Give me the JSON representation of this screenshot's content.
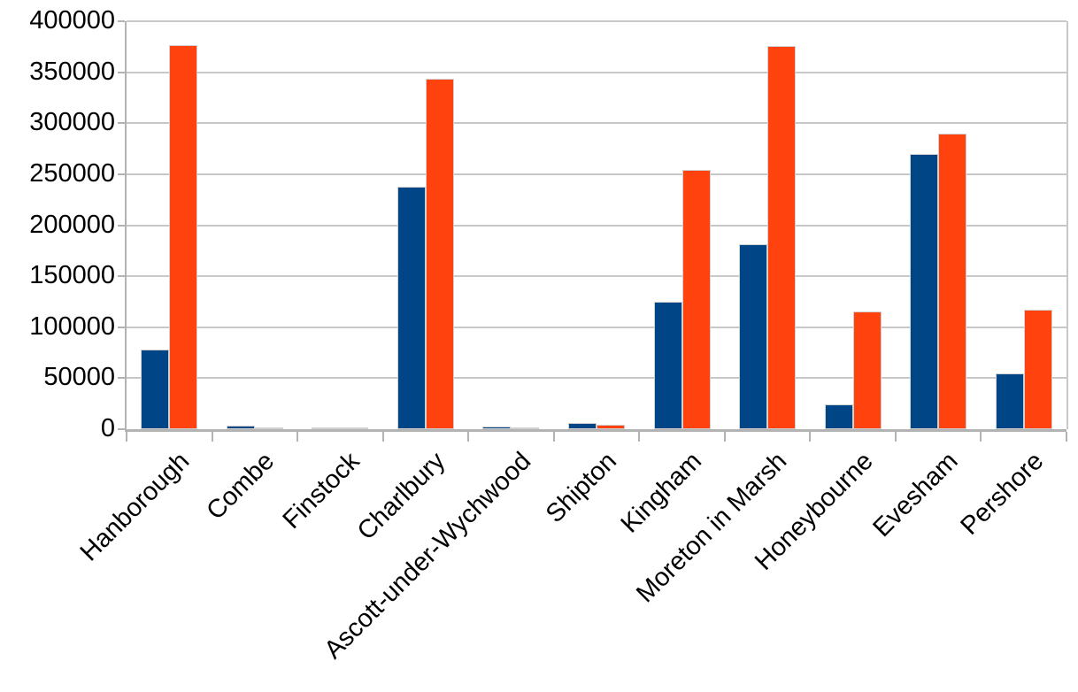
{
  "chart_data": {
    "type": "bar",
    "title": "",
    "xlabel": "",
    "ylabel": "",
    "categories": [
      "Hanborough",
      "Combe",
      "Finstock",
      "Charlbury",
      "Ascott-under-Wychwood",
      "Shipton",
      "Kingham",
      "Moreton in Marsh",
      "Honeybourne",
      "Evesham",
      "Pershore"
    ],
    "series": [
      {
        "name": "blue",
        "color": "#004586",
        "values": [
          78000,
          3500,
          2000,
          238000,
          2500,
          6500,
          125000,
          181000,
          24000,
          270000,
          55000
        ]
      },
      {
        "name": "orange",
        "color": "#FF420E",
        "values": [
          377000,
          2000,
          1500,
          344000,
          1800,
          4000,
          254000,
          376000,
          115000,
          290000,
          117000
        ]
      }
    ],
    "ylim": [
      0,
      400000
    ],
    "ytick_interval": 50000,
    "ytick_labels": [
      "400000",
      "350000",
      "300000",
      "250000",
      "200000",
      "150000",
      "100000",
      "50000",
      "0"
    ],
    "grid": true,
    "legend_position": "none",
    "xlabel_rotation_deg": 45,
    "colors": {
      "background": "#ffffff",
      "gridline": "#c8c8c8",
      "axis": "#b3b3b3",
      "bar_border": "#d0d0d0",
      "text": "#000000"
    }
  }
}
